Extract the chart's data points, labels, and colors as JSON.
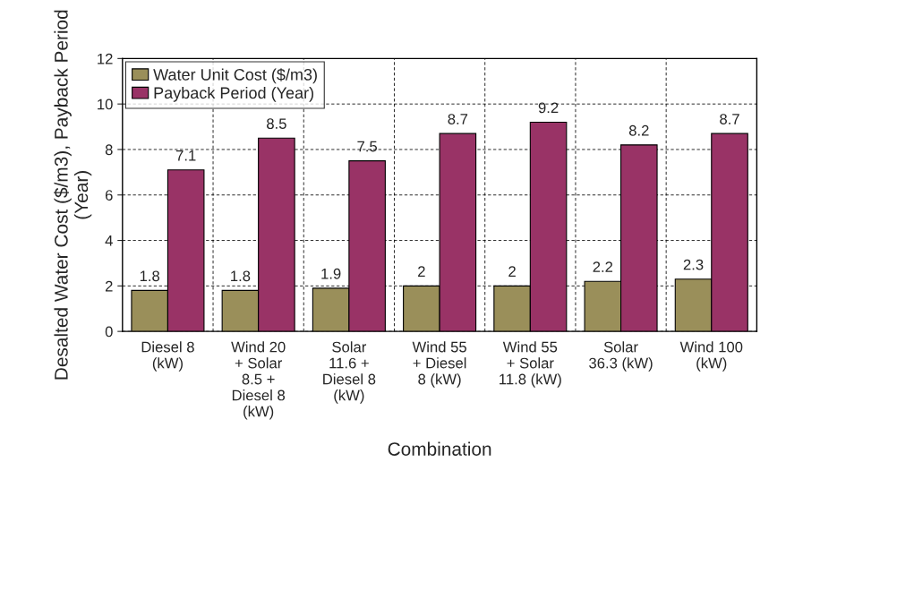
{
  "chart_data": {
    "type": "bar",
    "xlabel": "Combination",
    "ylabel": "Desalted Water Cost ($/m3), Payback Period (Year)",
    "categories": [
      "Diesel 8\n(kW)",
      "Wind 20\n+ Solar\n8.5 +\nDiesel 8\n(kW)",
      "Solar\n11.6 +\nDiesel 8\n(kW)",
      "Wind 55\n+ Diesel\n8 (kW)",
      "Wind 55\n+ Solar\n11.8 (kW)",
      "Solar\n36.3 (kW)",
      "Wind 100\n(kW)"
    ],
    "series": [
      {
        "name": "Water Unit Cost ($/m3)",
        "color": "#9a8f5a",
        "values": [
          1.8,
          1.8,
          1.9,
          2,
          2,
          2.2,
          2.3
        ]
      },
      {
        "name": "Payback Period (Year)",
        "color": "#993366",
        "values": [
          7.1,
          8.5,
          7.5,
          8.7,
          9.2,
          8.2,
          8.7
        ]
      }
    ],
    "ylim": [
      0,
      12
    ],
    "yticks": [
      0,
      2,
      4,
      6,
      8,
      10,
      12
    ],
    "grid": true,
    "legend": "top left",
    "data_labels": true
  }
}
